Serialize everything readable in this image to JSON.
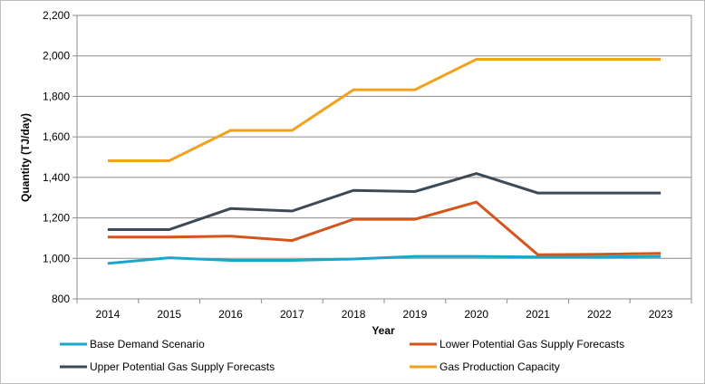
{
  "chart_data": {
    "type": "line",
    "title": "",
    "xlabel": "Year",
    "ylabel": "Quantity (TJ/day)",
    "ylim": [
      800,
      2200
    ],
    "yticks": [
      "800",
      "1,000",
      "1,200",
      "1,400",
      "1,600",
      "1,800",
      "2,000",
      "2,200"
    ],
    "ytick_values": [
      800,
      1000,
      1200,
      1400,
      1600,
      1800,
      2000,
      2200
    ],
    "categories": [
      "2014",
      "2015",
      "2016",
      "2017",
      "2018",
      "2019",
      "2020",
      "2021",
      "2022",
      "2023"
    ],
    "grid": "horizontal",
    "legend_position": "bottom",
    "series": [
      {
        "name": "Base Demand Scenario",
        "color": "#1aa6c8",
        "values": [
          975,
          1003,
          990,
          990,
          997,
          1010,
          1010,
          1007,
          1007,
          1010
        ]
      },
      {
        "name": "Lower Potential Gas Supply Forecasts",
        "color": "#d4551b",
        "values": [
          1105,
          1105,
          1110,
          1088,
          1193,
          1193,
          1278,
          1018,
          1020,
          1025
        ]
      },
      {
        "name": "Upper Potential Gas Supply Forecasts",
        "color": "#3d4a56",
        "values": [
          1142,
          1142,
          1246,
          1234,
          1336,
          1330,
          1419,
          1323,
          1323,
          1323
        ]
      },
      {
        "name": "Gas Production Capacity",
        "color": "#f2a11c",
        "values": [
          1482,
          1482,
          1632,
          1632,
          1833,
          1833,
          1983,
          1983,
          1983,
          1983
        ]
      }
    ]
  }
}
